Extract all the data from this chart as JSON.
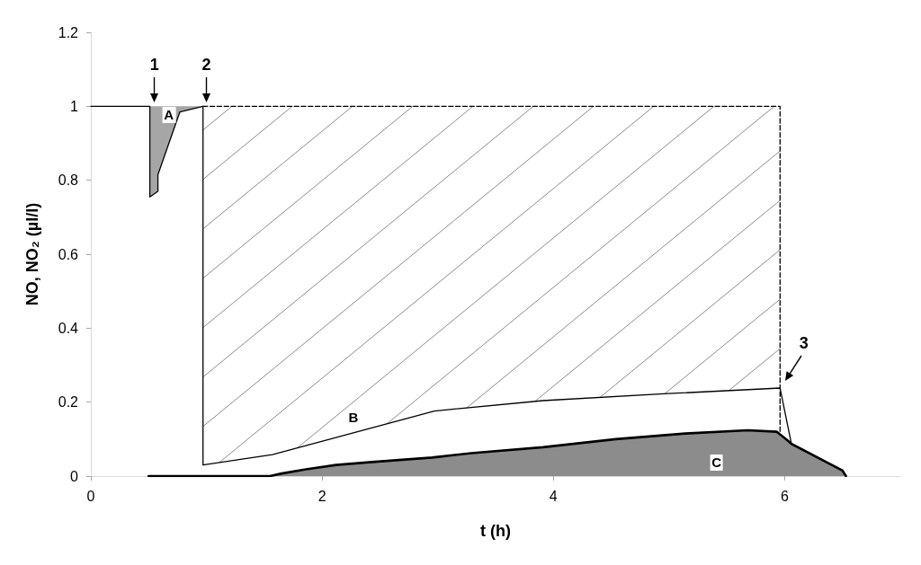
{
  "chart_data": {
    "type": "line",
    "xlabel": "t (h)",
    "ylabel": "NO, NO₂ (µl/l)",
    "xlim": [
      0,
      7
    ],
    "xticks": [
      0,
      2,
      4,
      6
    ],
    "ylim": [
      0,
      1.2
    ],
    "yticks": [
      0,
      0.2,
      0.4,
      0.6,
      0.8,
      1,
      1.2
    ],
    "series": [
      {
        "name": "A",
        "type": "line",
        "color": "#000000",
        "x": [
          0,
          0.51,
          0.51,
          0.58,
          0.58,
          0.77,
          0.97
        ],
        "values": [
          1,
          1,
          0.755,
          0.77,
          0.815,
          0.985,
          1
        ],
        "lower": [
          null,
          null,
          0.755,
          0.77,
          0.815,
          0.985,
          1
        ],
        "upper": [
          null,
          null,
          1,
          1,
          1,
          1,
          1
        ]
      },
      {
        "name": "B",
        "type": "line",
        "color": "#000000",
        "x": [
          0.97,
          0.97,
          1.57,
          2.97,
          3.91,
          4.99,
          5.96,
          6.06,
          6.5
        ],
        "values": [
          1,
          0.03,
          0.058,
          0.176,
          0.204,
          0.223,
          0.238,
          0.085,
          0.016
        ],
        "lower": [
          null,
          0.03,
          0.058,
          0.176,
          0.204,
          0.223,
          0.238,
          null,
          null
        ],
        "upper": [
          null,
          1,
          1,
          1,
          1,
          1,
          1,
          null,
          null
        ]
      },
      {
        "name": "C",
        "type": "area",
        "color": "#000000",
        "x": [
          0.5,
          1.55,
          1.65,
          1.86,
          2.12,
          2.43,
          2.95,
          3.29,
          3.91,
          4.54,
          5.14,
          5.68,
          5.93,
          6.02,
          6.06,
          6.5,
          6.53
        ],
        "values": [
          0,
          0,
          0.007,
          0.018,
          0.03,
          0.038,
          0.05,
          0.062,
          0.078,
          0.1,
          0.115,
          0.124,
          0.12,
          0.098,
          0.087,
          0.015,
          0
        ]
      },
      {
        "color": "#000000",
        "line_style": "dashed",
        "x": [
          0.97,
          5.96,
          5.96
        ],
        "values": [
          1,
          1,
          0.12
        ]
      }
    ],
    "annotations": [
      {
        "text": "1",
        "x": 0.55,
        "y": 1
      },
      {
        "text": "2",
        "x": 1,
        "y": 1
      },
      {
        "text": "3",
        "x": 5.98,
        "y": 0.245
      }
    ]
  }
}
